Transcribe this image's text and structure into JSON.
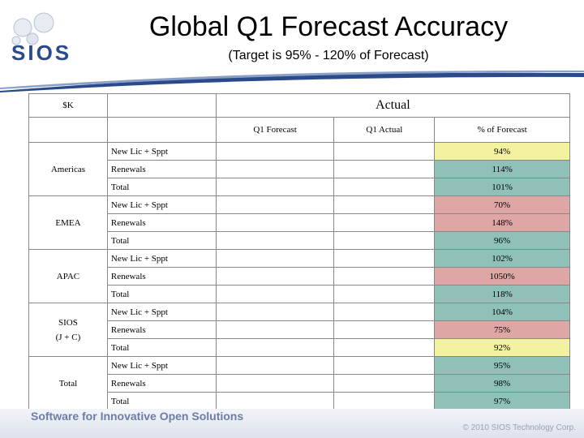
{
  "header": {
    "logo_text": "SIOS",
    "title": "Global Q1 Forecast Accuracy",
    "subtitle": "(Target is 95% - 120% of Forecast)"
  },
  "table": {
    "corner_label": "$K",
    "group_header": "Actual",
    "columns": [
      "Q1 Forecast",
      "Q1 Actual",
      "% of Forecast"
    ],
    "regions": [
      {
        "name": "Americas",
        "rows": [
          {
            "label": "New Lic + Sppt",
            "pct": "94%",
            "status": "yellow"
          },
          {
            "label": "Renewals",
            "pct": "114%",
            "status": "teal"
          },
          {
            "label": "Total",
            "pct": "101%",
            "status": "teal"
          }
        ]
      },
      {
        "name": "EMEA",
        "rows": [
          {
            "label": "New Lic + Sppt",
            "pct": "70%",
            "status": "pink"
          },
          {
            "label": "Renewals",
            "pct": "148%",
            "status": "pink"
          },
          {
            "label": "Total",
            "pct": "96%",
            "status": "teal"
          }
        ]
      },
      {
        "name": "APAC",
        "rows": [
          {
            "label": "New Lic + Sppt",
            "pct": "102%",
            "status": "teal"
          },
          {
            "label": "Renewals",
            "pct": "1050%",
            "status": "pink"
          },
          {
            "label": "Total",
            "pct": "118%",
            "status": "teal"
          }
        ]
      },
      {
        "name": "SIOS",
        "name2": "(J + C)",
        "rows": [
          {
            "label": "New Lic + Sppt",
            "pct": "104%",
            "status": "teal"
          },
          {
            "label": "Renewals",
            "pct": "75%",
            "status": "pink"
          },
          {
            "label": "Total",
            "pct": "92%",
            "status": "yellow"
          }
        ]
      },
      {
        "name": "Total",
        "rows": [
          {
            "label": "New Lic + Sppt",
            "pct": "95%",
            "status": "teal"
          },
          {
            "label": "Renewals",
            "pct": "98%",
            "status": "teal"
          },
          {
            "label": "Total",
            "pct": "97%",
            "status": "teal"
          }
        ]
      }
    ]
  },
  "footer": {
    "tagline": "Software for Innovative Open Solutions",
    "copyright": "© 2010 SIOS Technology Corp."
  },
  "colors": {
    "yellow": "#f3f2a0",
    "teal": "#8fc1b8",
    "pink": "#dfa6a6",
    "brand_blue": "#2a4a8a"
  }
}
